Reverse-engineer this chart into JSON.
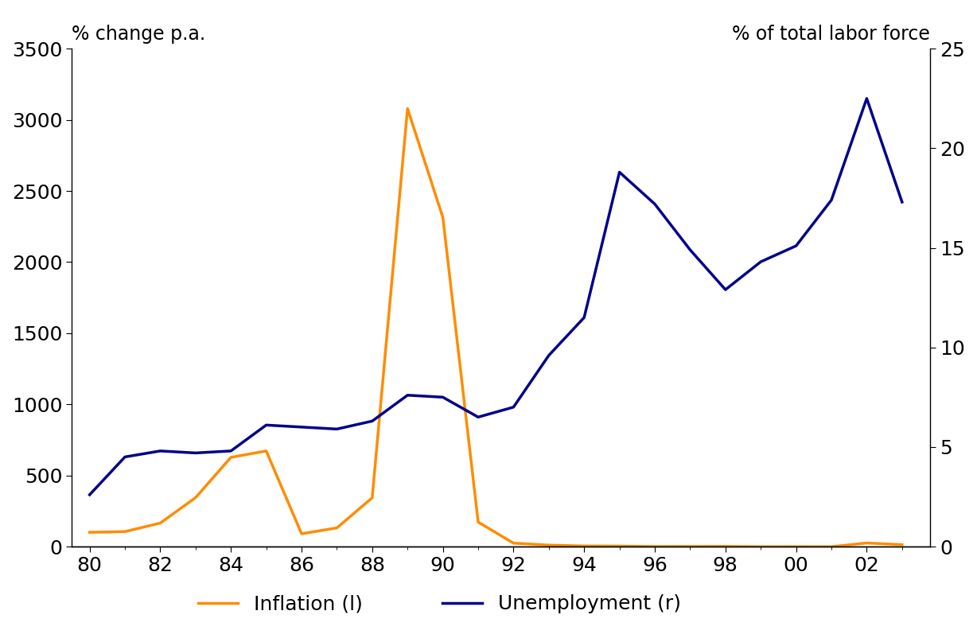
{
  "years": [
    1980,
    1981,
    1982,
    1983,
    1984,
    1985,
    1986,
    1987,
    1988,
    1989,
    1990,
    1991,
    1992,
    1993,
    1994,
    1995,
    1996,
    1997,
    1998,
    1999,
    2000,
    2001,
    2002,
    2003
  ],
  "inflation": [
    100,
    105,
    165,
    344,
    627,
    672,
    90,
    131,
    343,
    3079,
    2314,
    172,
    24,
    10,
    4,
    3,
    0.2,
    0.5,
    0.9,
    -1.2,
    -0.9,
    -1.1,
    25,
    13
  ],
  "unemployment": [
    2.6,
    4.5,
    4.8,
    4.7,
    4.8,
    6.1,
    6.0,
    5.9,
    6.3,
    7.6,
    7.5,
    6.5,
    7.0,
    9.6,
    11.5,
    18.8,
    17.2,
    14.9,
    12.9,
    14.3,
    15.1,
    17.4,
    22.5,
    17.3
  ],
  "inflation_color": "#FF8C00",
  "unemployment_color": "#00008B",
  "left_ylim": [
    0,
    3500
  ],
  "right_ylim": [
    0,
    25
  ],
  "left_yticks": [
    0,
    500,
    1000,
    1500,
    2000,
    2500,
    3000,
    3500
  ],
  "right_yticks": [
    0,
    5,
    10,
    15,
    20,
    25
  ],
  "left_ylabel": "% change p.a.",
  "right_ylabel": "% of total labor force",
  "inflation_label": "Inflation (l)",
  "unemployment_label": "Unemployment (r)",
  "line_width": 2.5,
  "background_color": "#ffffff",
  "tick_fontsize": 18,
  "label_fontsize": 17,
  "legend_fontsize": 18
}
